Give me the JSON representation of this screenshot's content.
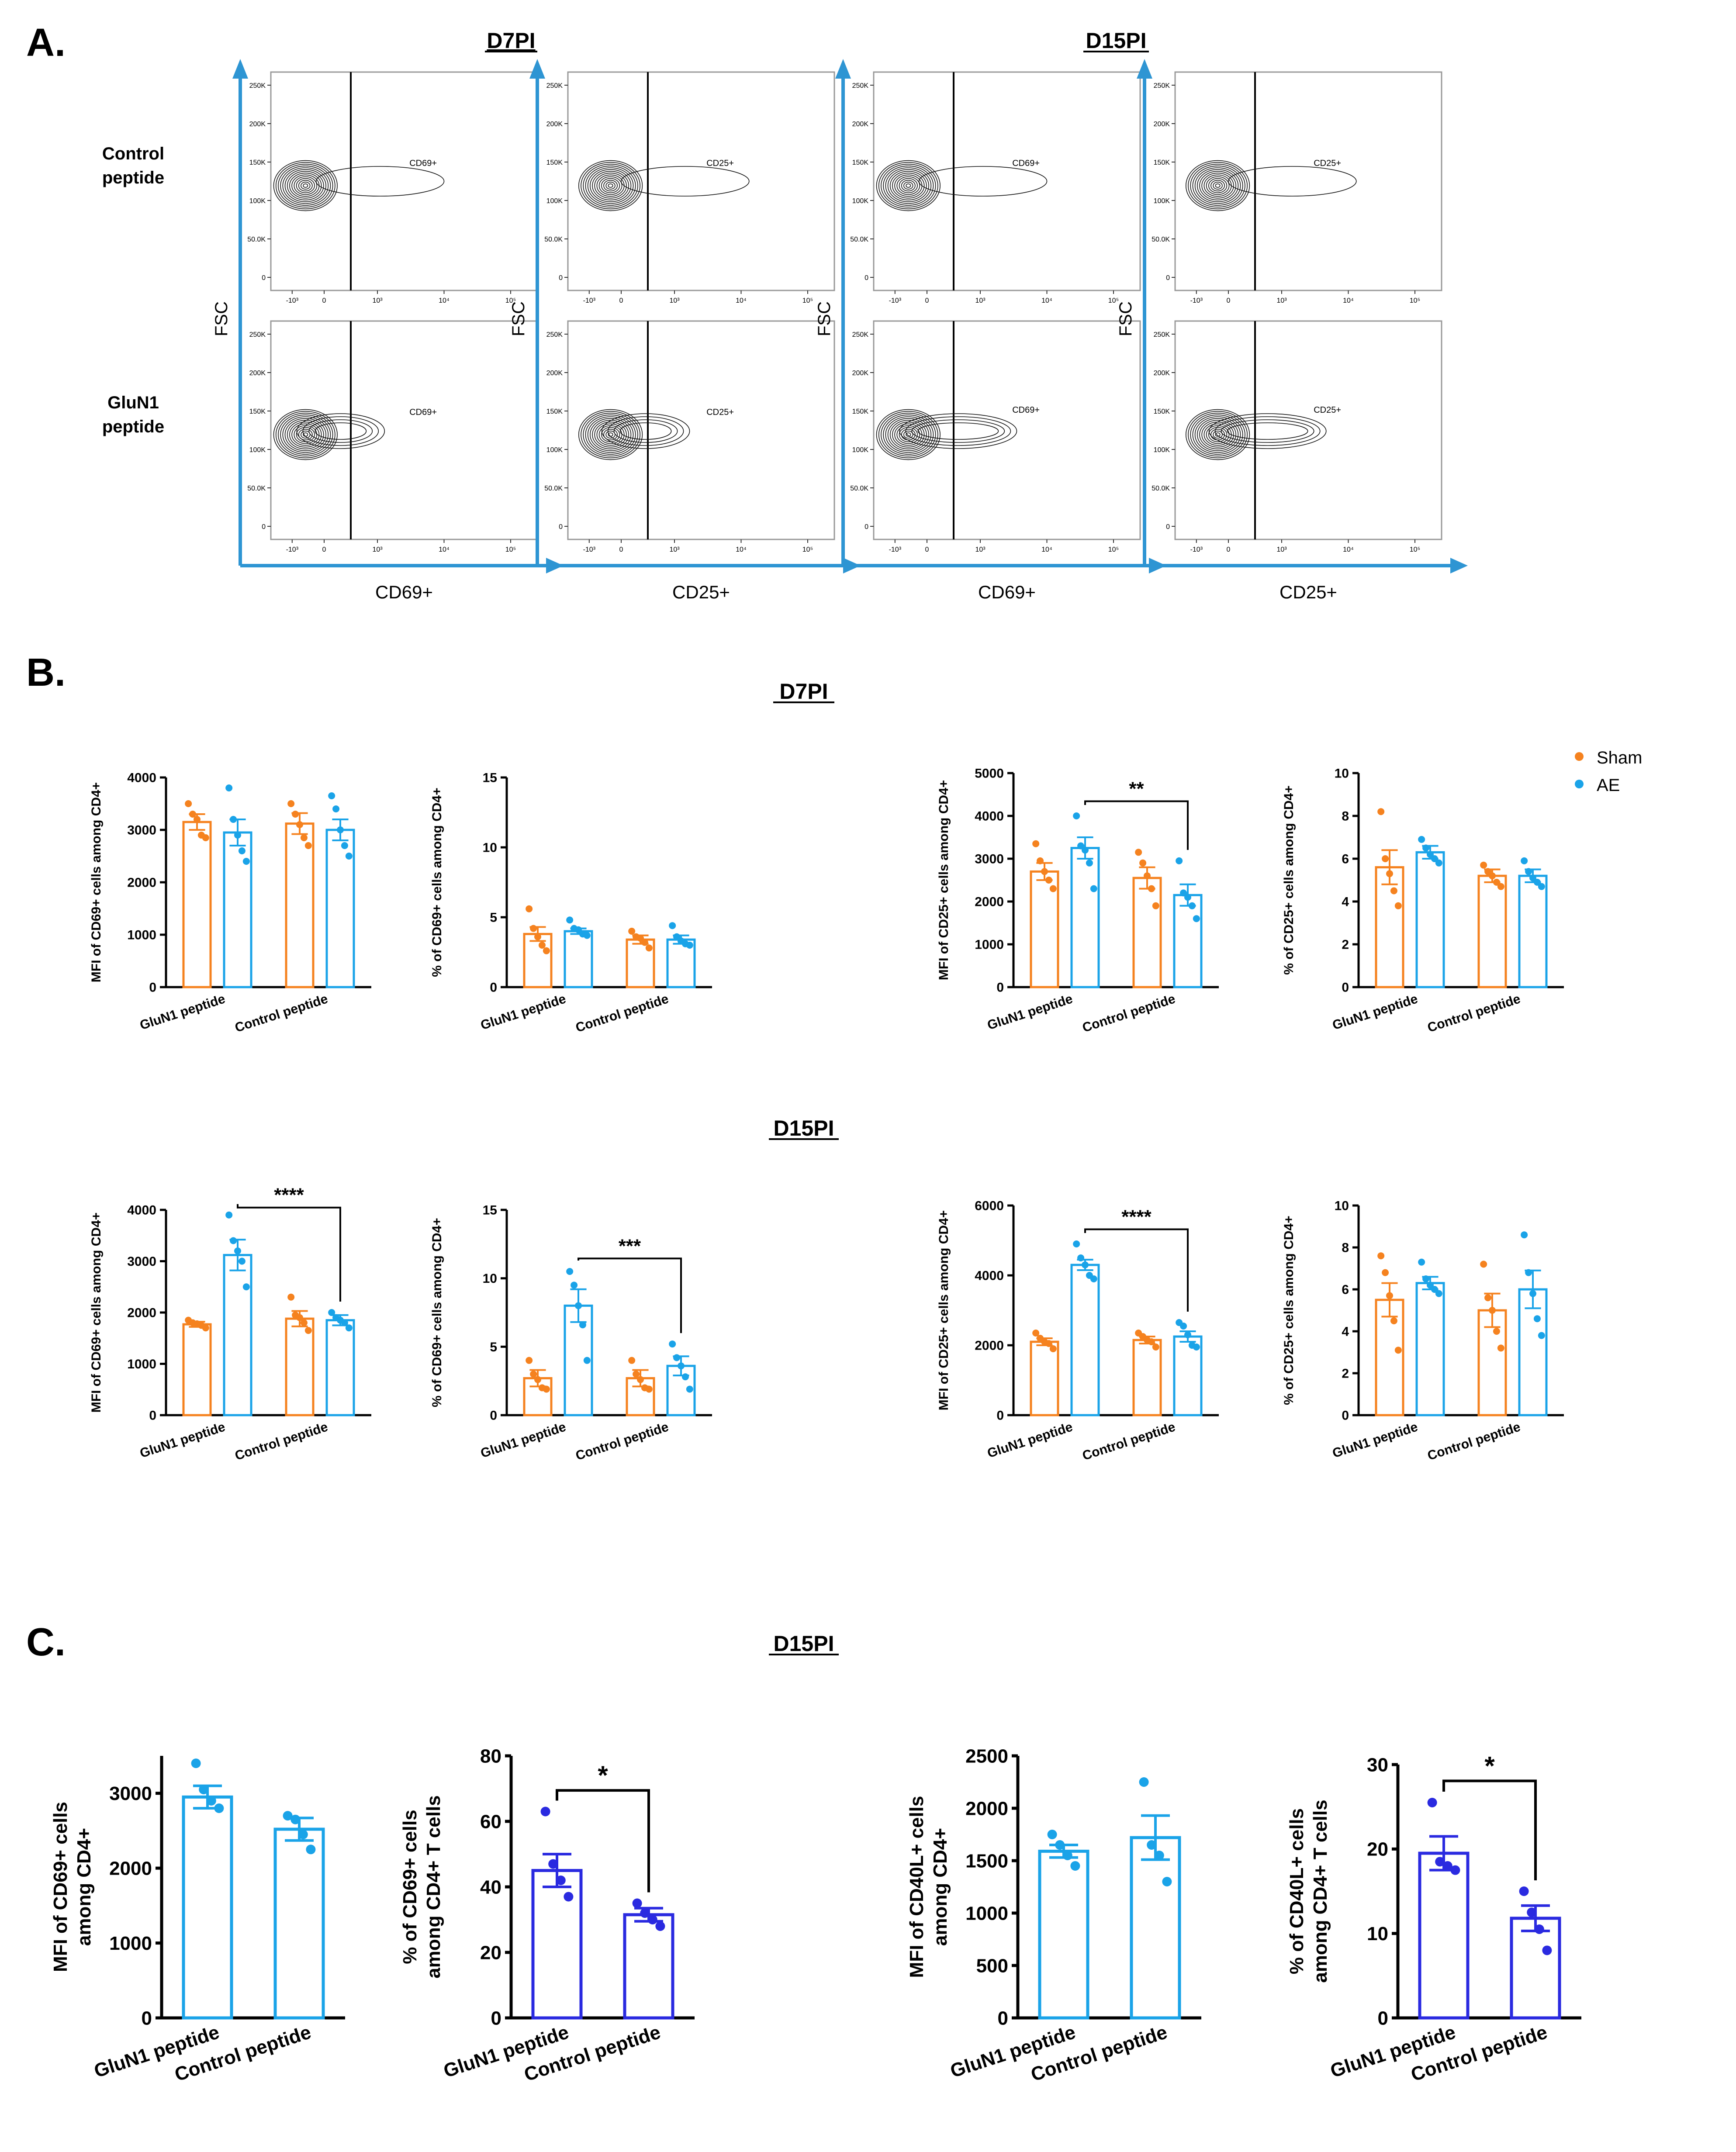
{
  "colors": {
    "sham": "#f5821f",
    "ae": "#1aa3e8",
    "dark_blue": "#2a2ae0",
    "axis_blue": "#2e95d3"
  },
  "panel_a": {
    "label": "A.",
    "timepoints": [
      "D7PI",
      "D15PI"
    ],
    "row_labels": [
      [
        "Control",
        "peptide"
      ],
      [
        "GluN1",
        "peptide"
      ]
    ],
    "y_axis_label": "FSC",
    "x_axis_labels": [
      "CD69+",
      "CD25+",
      "CD69+",
      "CD25+"
    ],
    "gate_labels": [
      "CD69+",
      "CD25+",
      "CD69+",
      "CD25+"
    ],
    "y_ticks": [
      "250K",
      "200K",
      "150K",
      "100K",
      "50.0K",
      "0"
    ],
    "x_ticks": [
      "-10³",
      "0",
      "10³",
      "10⁴",
      "10⁵"
    ]
  },
  "panel_b": {
    "label": "B.",
    "sections": [
      "D7PI",
      "D15PI"
    ],
    "legend": [
      "Sham",
      "AE"
    ]
  },
  "panel_c": {
    "label": "C.",
    "section": "D15PI"
  },
  "chart_data": [
    {
      "id": "b1",
      "type": "bar",
      "section": "D7PI",
      "ylabel": "MFI of CD69+ cells among CD4+",
      "ylim": [
        0,
        4000
      ],
      "yticks": [
        0,
        1000,
        2000,
        3000,
        4000
      ],
      "categories": [
        "GluN1 peptide",
        "Control peptide"
      ],
      "series": [
        {
          "name": "Sham",
          "values": [
            3150,
            3120
          ],
          "sem": [
            150,
            200
          ],
          "points": [
            [
              3500,
              3300,
              3200,
              2900,
              2850
            ],
            [
              3500,
              3300,
              3100,
              2850,
              2700
            ]
          ]
        },
        {
          "name": "AE",
          "values": [
            2950,
            3000
          ],
          "sem": [
            250,
            200
          ],
          "points": [
            [
              3800,
              3200,
              2900,
              2600,
              2400
            ],
            [
              3650,
              3400,
              3000,
              2700,
              2500
            ]
          ]
        }
      ],
      "significance": null
    },
    {
      "id": "b2",
      "type": "bar",
      "section": "D7PI",
      "ylabel": "% of CD69+ cells among CD4+",
      "ylim": [
        0,
        15
      ],
      "yticks": [
        0,
        5,
        10,
        15
      ],
      "categories": [
        "GluN1 peptide",
        "Control peptide"
      ],
      "series": [
        {
          "name": "Sham",
          "values": [
            3.8,
            3.4
          ],
          "sem": [
            0.5,
            0.3
          ],
          "points": [
            [
              5.6,
              4.2,
              3.6,
              3.0,
              2.6
            ],
            [
              4.0,
              3.6,
              3.5,
              3.2,
              2.8
            ]
          ]
        },
        {
          "name": "AE",
          "values": [
            4.0,
            3.4
          ],
          "sem": [
            0.2,
            0.3
          ],
          "points": [
            [
              4.8,
              4.2,
              4.1,
              3.8,
              3.7
            ],
            [
              4.4,
              3.6,
              3.3,
              3.1,
              3.0
            ]
          ]
        }
      ],
      "significance": null
    },
    {
      "id": "b3",
      "type": "bar",
      "section": "D7PI",
      "ylabel": "MFI of CD25+ cells among CD4+",
      "ylim": [
        0,
        5000
      ],
      "yticks": [
        0,
        1000,
        2000,
        3000,
        4000,
        5000
      ],
      "categories": [
        "GluN1 peptide",
        "Control peptide"
      ],
      "series": [
        {
          "name": "Sham",
          "values": [
            2700,
            2550
          ],
          "sem": [
            200,
            250
          ],
          "points": [
            [
              3350,
              2950,
              2700,
              2500,
              2300
            ],
            [
              3150,
              2900,
              2600,
              2300,
              1900
            ]
          ]
        },
        {
          "name": "AE",
          "values": [
            3250,
            2150
          ],
          "sem": [
            250,
            250
          ],
          "points": [
            [
              4000,
              3300,
              3200,
              2900,
              2300
            ],
            [
              2950,
              2200,
              2100,
              1900,
              1600
            ]
          ]
        }
      ],
      "significance": {
        "label": "**",
        "from": [
          0,
          "AE"
        ],
        "to": [
          1,
          "AE"
        ]
      }
    },
    {
      "id": "b4",
      "type": "bar",
      "section": "D7PI",
      "ylabel": "% of CD25+ cells among CD4+",
      "ylim": [
        0,
        10
      ],
      "yticks": [
        0,
        2,
        4,
        6,
        8,
        10
      ],
      "categories": [
        "GluN1 peptide",
        "Control peptide"
      ],
      "series": [
        {
          "name": "Sham",
          "values": [
            5.6,
            5.2
          ],
          "sem": [
            0.8,
            0.3
          ],
          "points": [
            [
              8.2,
              6.0,
              5.3,
              4.5,
              3.8
            ],
            [
              5.7,
              5.4,
              5.2,
              4.9,
              4.7
            ]
          ]
        },
        {
          "name": "AE",
          "values": [
            6.3,
            5.2
          ],
          "sem": [
            0.3,
            0.3
          ],
          "points": [
            [
              6.9,
              6.5,
              6.2,
              6.0,
              5.8
            ],
            [
              5.9,
              5.4,
              5.1,
              4.9,
              4.7
            ]
          ]
        }
      ],
      "significance": null
    },
    {
      "id": "b5",
      "type": "bar",
      "section": "D15PI",
      "ylabel": "MFI of CD69+ cells among CD4+",
      "ylim": [
        0,
        4000
      ],
      "yticks": [
        0,
        1000,
        2000,
        3000,
        4000
      ],
      "categories": [
        "GluN1 peptide",
        "Control peptide"
      ],
      "series": [
        {
          "name": "Sham",
          "values": [
            1770,
            1880
          ],
          "sem": [
            50,
            150
          ],
          "points": [
            [
              1850,
              1800,
              1780,
              1750,
              1700
            ],
            [
              2300,
              1950,
              1900,
              1800,
              1650
            ]
          ]
        },
        {
          "name": "AE",
          "values": [
            3120,
            1850
          ],
          "sem": [
            300,
            100
          ],
          "points": [
            [
              3900,
              3400,
              3200,
              3000,
              2500
            ],
            [
              2000,
              1900,
              1850,
              1800,
              1700
            ]
          ]
        }
      ],
      "significance": {
        "label": "****",
        "from": [
          0,
          "AE"
        ],
        "to": [
          1,
          "AE"
        ]
      }
    },
    {
      "id": "b6",
      "type": "bar",
      "section": "D15PI",
      "ylabel": "% of CD69+ cells among CD4+",
      "ylim": [
        0,
        15
      ],
      "yticks": [
        0,
        5,
        10,
        15
      ],
      "categories": [
        "GluN1 peptide",
        "Control peptide"
      ],
      "series": [
        {
          "name": "Sham",
          "values": [
            2.7,
            2.7
          ],
          "sem": [
            0.6,
            0.6
          ],
          "points": [
            [
              4.0,
              3.0,
              2.6,
              2.0,
              1.9
            ],
            [
              4.0,
              3.0,
              2.6,
              2.0,
              1.9
            ]
          ]
        },
        {
          "name": "AE",
          "values": [
            8.0,
            3.6
          ],
          "sem": [
            1.2,
            0.7
          ],
          "points": [
            [
              10.5,
              9.5,
              8.0,
              6.6,
              4.0
            ],
            [
              5.2,
              4.2,
              3.6,
              2.8,
              1.9
            ]
          ]
        }
      ],
      "significance": {
        "label": "***",
        "from": [
          0,
          "AE"
        ],
        "to": [
          1,
          "AE"
        ]
      }
    },
    {
      "id": "b7",
      "type": "bar",
      "section": "D15PI",
      "ylabel": "MFI of CD25+ cells among CD4+",
      "ylim": [
        0,
        6000
      ],
      "yticks": [
        0,
        2000,
        4000,
        6000
      ],
      "categories": [
        "GluN1 peptide",
        "Control peptide"
      ],
      "series": [
        {
          "name": "Sham",
          "values": [
            2100,
            2150
          ],
          "sem": [
            100,
            100
          ],
          "points": [
            [
              2350,
              2200,
              2100,
              2050,
              1900
            ],
            [
              2350,
              2250,
              2150,
              2100,
              1950
            ]
          ]
        },
        {
          "name": "AE",
          "values": [
            4300,
            2250
          ],
          "sem": [
            150,
            150
          ],
          "points": [
            [
              4900,
              4500,
              4300,
              4000,
              3900
            ],
            [
              2650,
              2550,
              2300,
              2000,
              1950
            ]
          ]
        }
      ],
      "significance": {
        "label": "****",
        "from": [
          0,
          "AE"
        ],
        "to": [
          1,
          "AE"
        ]
      }
    },
    {
      "id": "b8",
      "type": "bar",
      "section": "D15PI",
      "ylabel": "% of CD25+ cells among CD4+",
      "ylim": [
        0,
        10
      ],
      "yticks": [
        0,
        2,
        4,
        6,
        8,
        10
      ],
      "categories": [
        "GluN1 peptide",
        "Control peptide"
      ],
      "series": [
        {
          "name": "Sham",
          "values": [
            5.5,
            5.0
          ],
          "sem": [
            0.8,
            0.8
          ],
          "points": [
            [
              7.6,
              6.8,
              5.7,
              4.5,
              3.1
            ],
            [
              7.2,
              5.6,
              5.0,
              4.0,
              3.2
            ]
          ]
        },
        {
          "name": "AE",
          "values": [
            6.3,
            6.0
          ],
          "sem": [
            0.3,
            0.9
          ],
          "points": [
            [
              7.3,
              6.5,
              6.2,
              6.0,
              5.8
            ],
            [
              8.6,
              6.8,
              5.8,
              4.6,
              3.8
            ]
          ]
        }
      ],
      "significance": null
    },
    {
      "id": "c1",
      "type": "bar",
      "section": "D15PI",
      "ylabel": [
        "MFI of CD69+ cells",
        "among CD4+"
      ],
      "ylim": [
        0,
        3500
      ],
      "yticks": [
        0,
        1000,
        2000,
        3000
      ],
      "categories": [
        "GluN1 peptide",
        "Control peptide"
      ],
      "series": [
        {
          "name": "AE",
          "color": "ae",
          "values": [
            2950,
            2520
          ],
          "sem": [
            150,
            150
          ],
          "points": [
            [
              3400,
              3050,
              2900,
              2800
            ],
            [
              2700,
              2650,
              2450,
              2250
            ]
          ]
        }
      ],
      "significance": null
    },
    {
      "id": "c2",
      "type": "bar",
      "section": "D15PI",
      "ylabel": [
        "% of CD69+ cells",
        "among CD4+ T cells"
      ],
      "ylim": [
        0,
        80
      ],
      "yticks": [
        0,
        20,
        40,
        60,
        80
      ],
      "categories": [
        "GluN1 peptide",
        "Control peptide"
      ],
      "series": [
        {
          "name": "AE",
          "color": "dark_blue",
          "values": [
            45,
            31.5
          ],
          "sem": [
            5,
            2
          ],
          "points": [
            [
              63,
              47,
              42,
              37
            ],
            [
              35,
              32,
              30,
              28
            ]
          ]
        }
      ],
      "significance": {
        "label": "*",
        "from": [
          0,
          "AE"
        ],
        "to": [
          1,
          "AE"
        ]
      }
    },
    {
      "id": "c3",
      "type": "bar",
      "section": "D15PI",
      "ylabel": [
        "MFI of CD40L+ cells",
        "among CD4+"
      ],
      "ylim": [
        0,
        2500
      ],
      "yticks": [
        0,
        500,
        1000,
        1500,
        2000,
        2500
      ],
      "categories": [
        "GluN1 peptide",
        "Control peptide"
      ],
      "series": [
        {
          "name": "AE",
          "color": "ae",
          "values": [
            1590,
            1720
          ],
          "sem": [
            60,
            210
          ],
          "points": [
            [
              1750,
              1650,
              1550,
              1450
            ],
            [
              2250,
              1650,
              1550,
              1300
            ]
          ]
        }
      ],
      "significance": null
    },
    {
      "id": "c4",
      "type": "bar",
      "section": "D15PI",
      "ylabel": [
        "% of CD40L+ cells",
        "among CD4+ T cells"
      ],
      "ylim": [
        0,
        30
      ],
      "yticks": [
        0,
        10,
        20,
        30
      ],
      "categories": [
        "GluN1 peptide",
        "Control peptide"
      ],
      "series": [
        {
          "name": "AE",
          "color": "dark_blue",
          "values": [
            19.5,
            11.8
          ],
          "sem": [
            2,
            1.5
          ],
          "points": [
            [
              25.5,
              18.5,
              18,
              17.5
            ],
            [
              15,
              12.5,
              10.5,
              8
            ]
          ]
        }
      ],
      "significance": {
        "label": "*",
        "from": [
          0,
          "AE"
        ],
        "to": [
          1,
          "AE"
        ]
      }
    }
  ]
}
